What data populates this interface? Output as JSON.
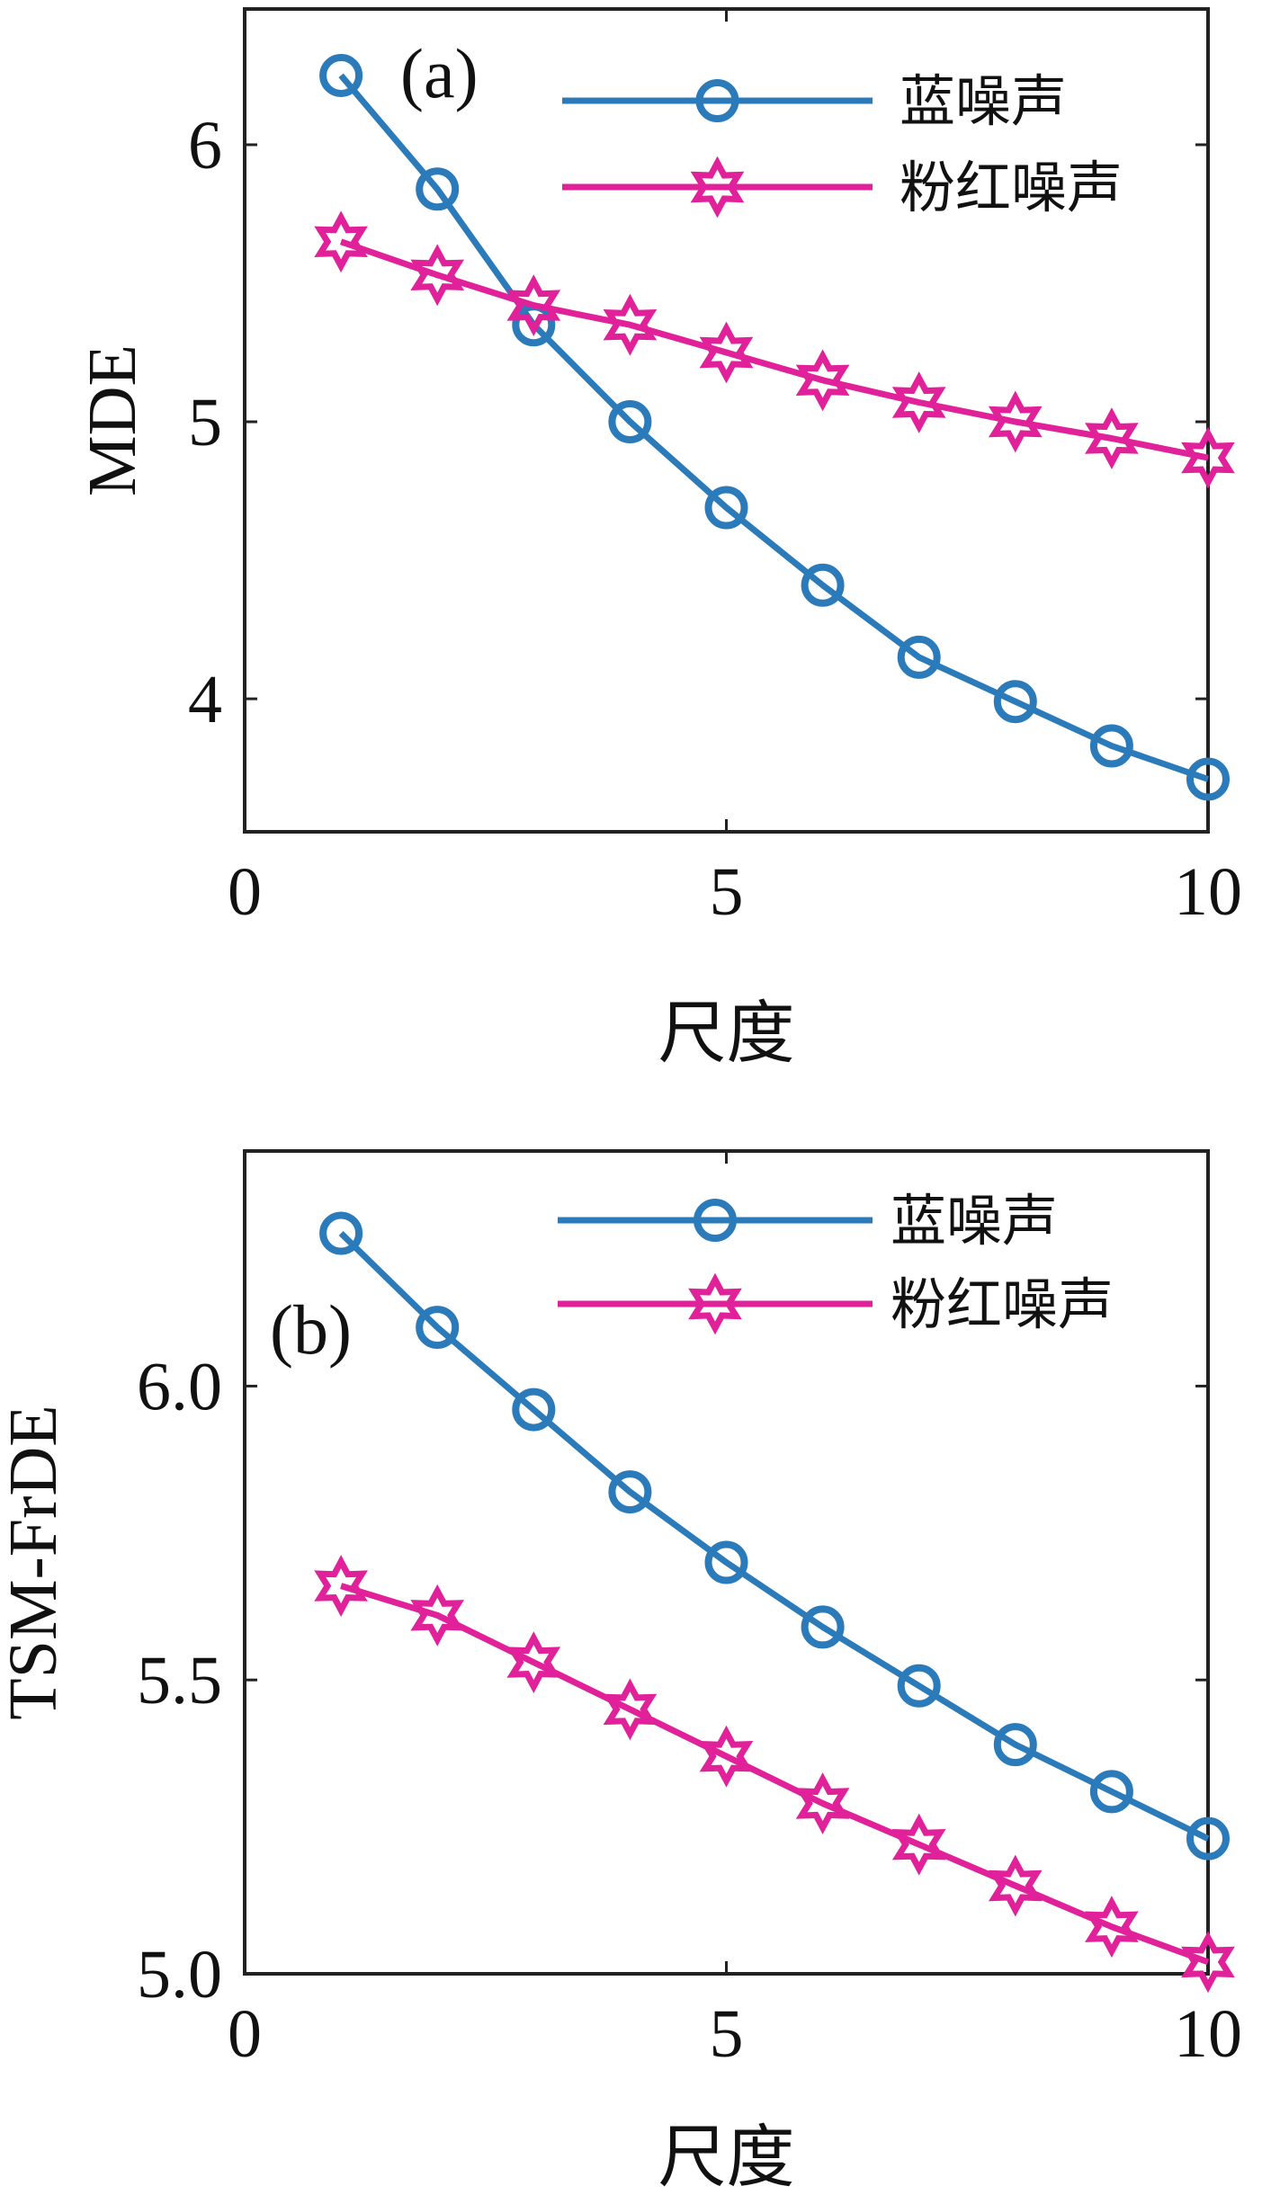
{
  "chart_data": [
    {
      "type": "line",
      "panel_label": "(a)",
      "xlabel": "尺度",
      "ylabel": "MDE",
      "xlim": [
        0,
        10
      ],
      "ylim": [
        3.52,
        6.49
      ],
      "xticks": [
        "0",
        "5",
        "10"
      ],
      "yticks": [
        "4",
        "5",
        "6"
      ],
      "x": [
        1,
        2,
        3,
        4,
        5,
        6,
        7,
        8,
        9,
        10
      ],
      "legend_position": "top-right",
      "grid": false,
      "series": [
        {
          "name": "蓝噪声",
          "marker": "circle",
          "color": "#2b7bba",
          "values": [
            6.25,
            5.84,
            5.35,
            5.0,
            4.69,
            4.41,
            4.15,
            3.99,
            3.83,
            3.71
          ]
        },
        {
          "name": "粉红噪声",
          "marker": "star",
          "color": "#e0219a",
          "values": [
            5.65,
            5.53,
            5.42,
            5.35,
            5.25,
            5.15,
            5.07,
            5.0,
            4.94,
            4.87
          ]
        }
      ]
    },
    {
      "type": "line",
      "panel_label": "(b)",
      "xlabel": "尺度",
      "ylabel": "TSM-FrDE",
      "xlim": [
        0,
        10
      ],
      "ylim": [
        5.0,
        6.4
      ],
      "xticks": [
        "0",
        "5",
        "10"
      ],
      "yticks": [
        "5.0",
        "5.5",
        "6.0"
      ],
      "x": [
        1,
        2,
        3,
        4,
        5,
        6,
        7,
        8,
        9,
        10
      ],
      "legend_position": "top-right",
      "grid": false,
      "series": [
        {
          "name": "蓝噪声",
          "marker": "circle",
          "color": "#2b7bba",
          "values": [
            6.26,
            6.1,
            5.96,
            5.82,
            5.7,
            5.59,
            5.49,
            5.39,
            5.31,
            5.23
          ]
        },
        {
          "name": "粉红噪声",
          "marker": "star",
          "color": "#e0219a",
          "values": [
            5.66,
            5.61,
            5.53,
            5.45,
            5.37,
            5.29,
            5.22,
            5.15,
            5.08,
            5.02
          ]
        }
      ]
    }
  ]
}
